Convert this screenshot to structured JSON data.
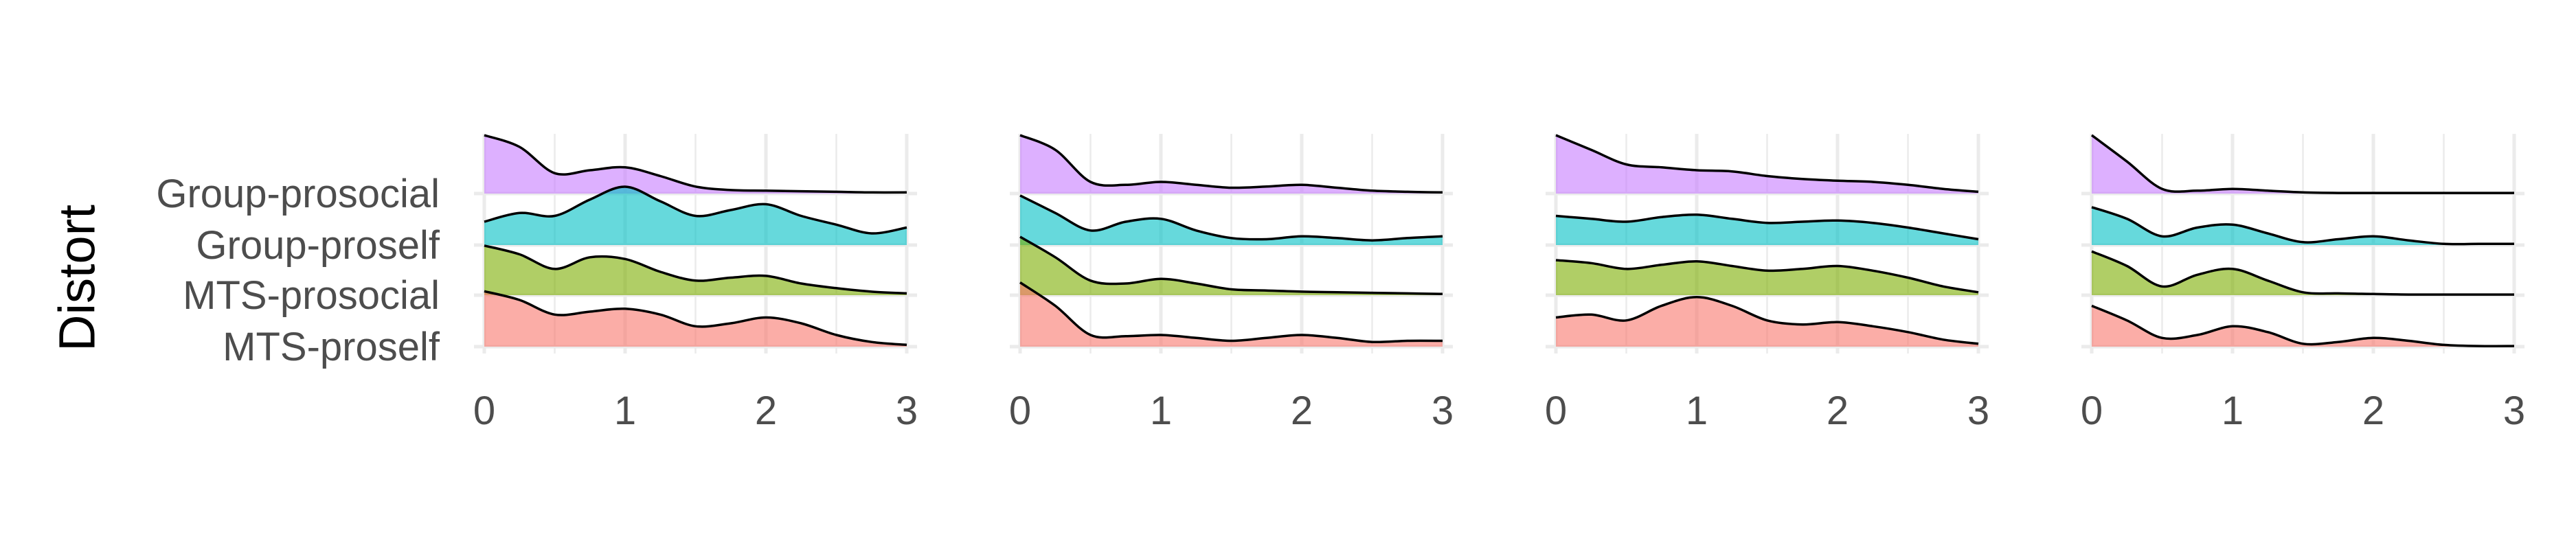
{
  "chart_data": {
    "type": "ridgeline",
    "ylabel": "Distort",
    "xlabel": "",
    "xlim": [
      0,
      3
    ],
    "x_ticks": [
      "0",
      "1",
      "2",
      "3"
    ],
    "grid": true,
    "x": [
      0,
      0.25,
      0.5,
      0.75,
      1,
      1.25,
      1.5,
      1.75,
      2,
      2.25,
      2.5,
      2.75,
      3
    ],
    "categories": [
      "Group-prosocial",
      "Group-proself",
      "MTS-prosocial",
      "MTS-proself"
    ],
    "colors": {
      "Group-prosocial": "#c77cff",
      "Group-proself": "#00bfc4",
      "MTS-prosocial": "#7cae00",
      "MTS-proself": "#f8766d"
    },
    "panels": [
      {
        "series": [
          {
            "name": "Group-prosocial",
            "values": [
              1.0,
              0.8,
              0.35,
              0.4,
              0.45,
              0.3,
              0.12,
              0.06,
              0.05,
              0.04,
              0.03,
              0.02,
              0.02
            ]
          },
          {
            "name": "Group-proself",
            "values": [
              0.4,
              0.55,
              0.5,
              0.78,
              1.0,
              0.75,
              0.5,
              0.6,
              0.7,
              0.5,
              0.35,
              0.2,
              0.3
            ]
          },
          {
            "name": "MTS-prosocial",
            "values": [
              0.85,
              0.7,
              0.45,
              0.65,
              0.62,
              0.4,
              0.25,
              0.3,
              0.33,
              0.2,
              0.12,
              0.06,
              0.03
            ]
          },
          {
            "name": "MTS-proself",
            "values": [
              0.95,
              0.8,
              0.55,
              0.6,
              0.65,
              0.55,
              0.35,
              0.4,
              0.5,
              0.4,
              0.2,
              0.08,
              0.03
            ]
          }
        ]
      },
      {
        "series": [
          {
            "name": "Group-prosocial",
            "values": [
              1.0,
              0.75,
              0.2,
              0.15,
              0.2,
              0.15,
              0.1,
              0.12,
              0.15,
              0.1,
              0.05,
              0.03,
              0.02
            ]
          },
          {
            "name": "Group-proself",
            "values": [
              0.85,
              0.55,
              0.25,
              0.4,
              0.45,
              0.25,
              0.12,
              0.1,
              0.15,
              0.12,
              0.08,
              0.12,
              0.15
            ]
          },
          {
            "name": "MTS-prosocial",
            "values": [
              1.0,
              0.65,
              0.25,
              0.2,
              0.28,
              0.2,
              0.1,
              0.08,
              0.06,
              0.05,
              0.04,
              0.03,
              0.02
            ]
          },
          {
            "name": "MTS-proself",
            "values": [
              1.1,
              0.7,
              0.2,
              0.18,
              0.2,
              0.15,
              0.1,
              0.15,
              0.2,
              0.15,
              0.08,
              0.1,
              0.1
            ]
          }
        ]
      },
      {
        "series": [
          {
            "name": "Group-prosocial",
            "values": [
              1.0,
              0.75,
              0.5,
              0.45,
              0.4,
              0.38,
              0.3,
              0.25,
              0.22,
              0.2,
              0.15,
              0.08,
              0.03
            ]
          },
          {
            "name": "Group-proself",
            "values": [
              0.5,
              0.45,
              0.4,
              0.48,
              0.52,
              0.45,
              0.38,
              0.4,
              0.42,
              0.38,
              0.3,
              0.2,
              0.1
            ]
          },
          {
            "name": "MTS-prosocial",
            "values": [
              0.6,
              0.55,
              0.45,
              0.52,
              0.58,
              0.5,
              0.42,
              0.45,
              0.5,
              0.42,
              0.3,
              0.15,
              0.05
            ]
          },
          {
            "name": "MTS-proself",
            "values": [
              0.5,
              0.55,
              0.45,
              0.7,
              0.85,
              0.7,
              0.45,
              0.38,
              0.42,
              0.35,
              0.25,
              0.12,
              0.05
            ]
          }
        ]
      },
      {
        "series": [
          {
            "name": "Group-prosocial",
            "values": [
              1.0,
              0.55,
              0.08,
              0.05,
              0.08,
              0.05,
              0.02,
              0.01,
              0.01,
              0.01,
              0.01,
              0.01,
              0.01
            ]
          },
          {
            "name": "Group-proself",
            "values": [
              0.65,
              0.45,
              0.15,
              0.3,
              0.35,
              0.2,
              0.05,
              0.1,
              0.15,
              0.08,
              0.02,
              0.02,
              0.02
            ]
          },
          {
            "name": "MTS-prosocial",
            "values": [
              0.75,
              0.5,
              0.15,
              0.35,
              0.45,
              0.25,
              0.05,
              0.03,
              0.02,
              0.01,
              0.01,
              0.01,
              0.01
            ]
          },
          {
            "name": "MTS-proself",
            "values": [
              0.7,
              0.45,
              0.15,
              0.2,
              0.35,
              0.25,
              0.05,
              0.08,
              0.15,
              0.1,
              0.03,
              0.01,
              0.01
            ]
          }
        ]
      }
    ]
  }
}
